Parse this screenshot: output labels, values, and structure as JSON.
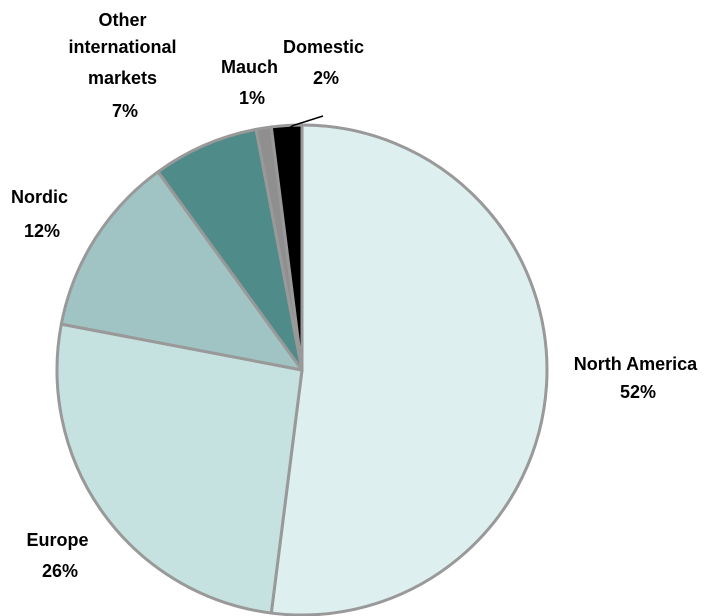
{
  "chart_data": {
    "type": "pie",
    "title": "",
    "start": "12 o'clock",
    "direction": "clockwise",
    "slices": [
      {
        "name": "North America",
        "value": 52,
        "label": "52%",
        "color": "#ddf0ef"
      },
      {
        "name": "Europe",
        "value": 26,
        "label": "26%",
        "color": "#c5e1e0"
      },
      {
        "name": "Nordic",
        "value": 12,
        "label": "12%",
        "color": "#a0c4c3"
      },
      {
        "name": "Other international markets",
        "value": 7,
        "label": "7%",
        "color": "#4f8b89"
      },
      {
        "name": "Mauch",
        "value": 1,
        "label": "1%",
        "color": "#8f8f8f"
      },
      {
        "name": "Domestic",
        "value": 2,
        "label": "2%",
        "color": "#000000"
      }
    ],
    "slice_border_color": "#999999"
  }
}
